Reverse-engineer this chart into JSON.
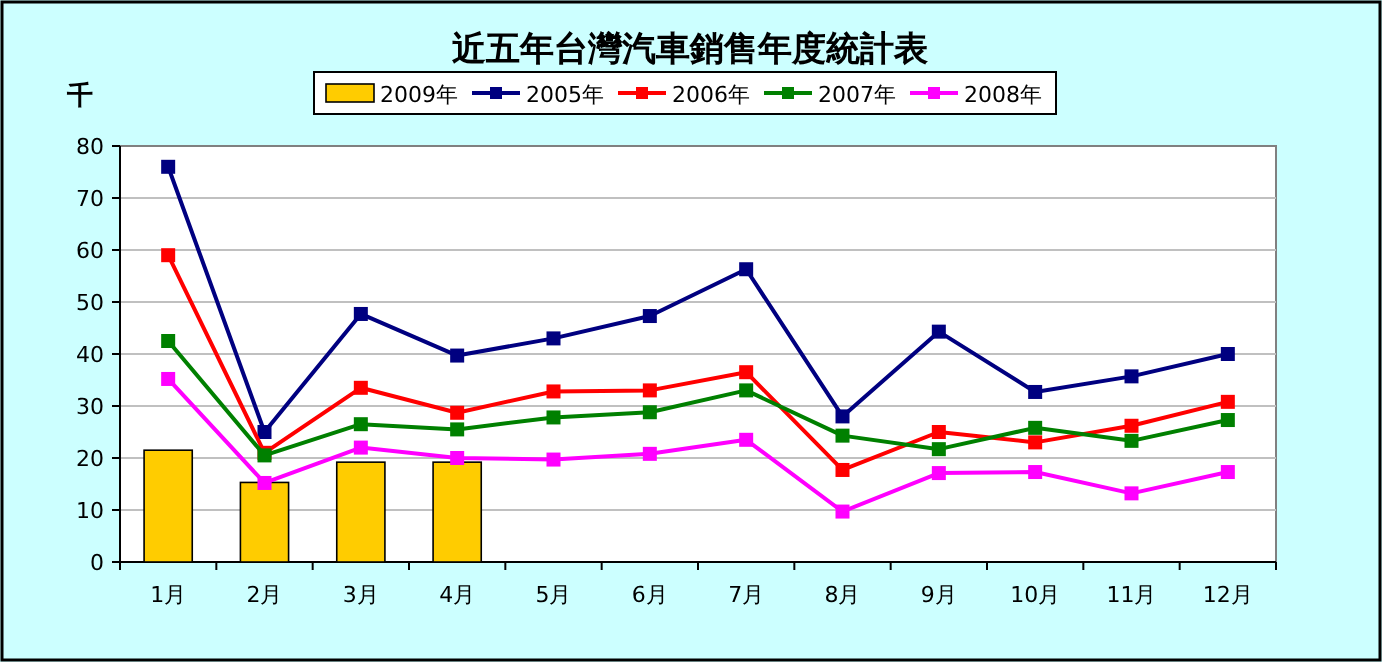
{
  "chart_data": {
    "type": "line",
    "title": "近五年台灣汽車銷售年度統計表",
    "ylabel": "千",
    "categories": [
      "1月",
      "2月",
      "3月",
      "4月",
      "5月",
      "6月",
      "7月",
      "8月",
      "9月",
      "10月",
      "11月",
      "12月"
    ],
    "series": [
      {
        "name": "2009年",
        "type": "bar",
        "color": "#ffcc00",
        "values": [
          21.5,
          15.3,
          19.2,
          19.2,
          null,
          null,
          null,
          null,
          null,
          null,
          null,
          null
        ]
      },
      {
        "name": "2005年",
        "color": "#000080",
        "values": [
          76,
          25,
          47.7,
          39.7,
          43,
          47.3,
          56.3,
          28,
          44.3,
          32.7,
          35.7,
          40
        ]
      },
      {
        "name": "2006年",
        "color": "#ff0000",
        "values": [
          59,
          21,
          33.5,
          28.7,
          32.8,
          33,
          36.5,
          17.7,
          25,
          23,
          26.2,
          30.8
        ]
      },
      {
        "name": "2007年",
        "color": "#008000",
        "values": [
          42.5,
          20.5,
          26.5,
          25.5,
          27.8,
          28.8,
          33,
          24.3,
          21.7,
          25.8,
          23.3,
          27.3
        ]
      },
      {
        "name": "2008年",
        "color": "#ff00ff",
        "values": [
          35.2,
          15.2,
          22,
          20,
          19.7,
          20.8,
          23.5,
          9.7,
          17.1,
          17.3,
          13.2,
          17.3
        ]
      }
    ],
    "ylim": [
      0,
      80
    ],
    "yticks": [
      0,
      10,
      20,
      30,
      40,
      50,
      60,
      70,
      80
    ],
    "grid": "y",
    "legend": "top",
    "marker": "square"
  }
}
